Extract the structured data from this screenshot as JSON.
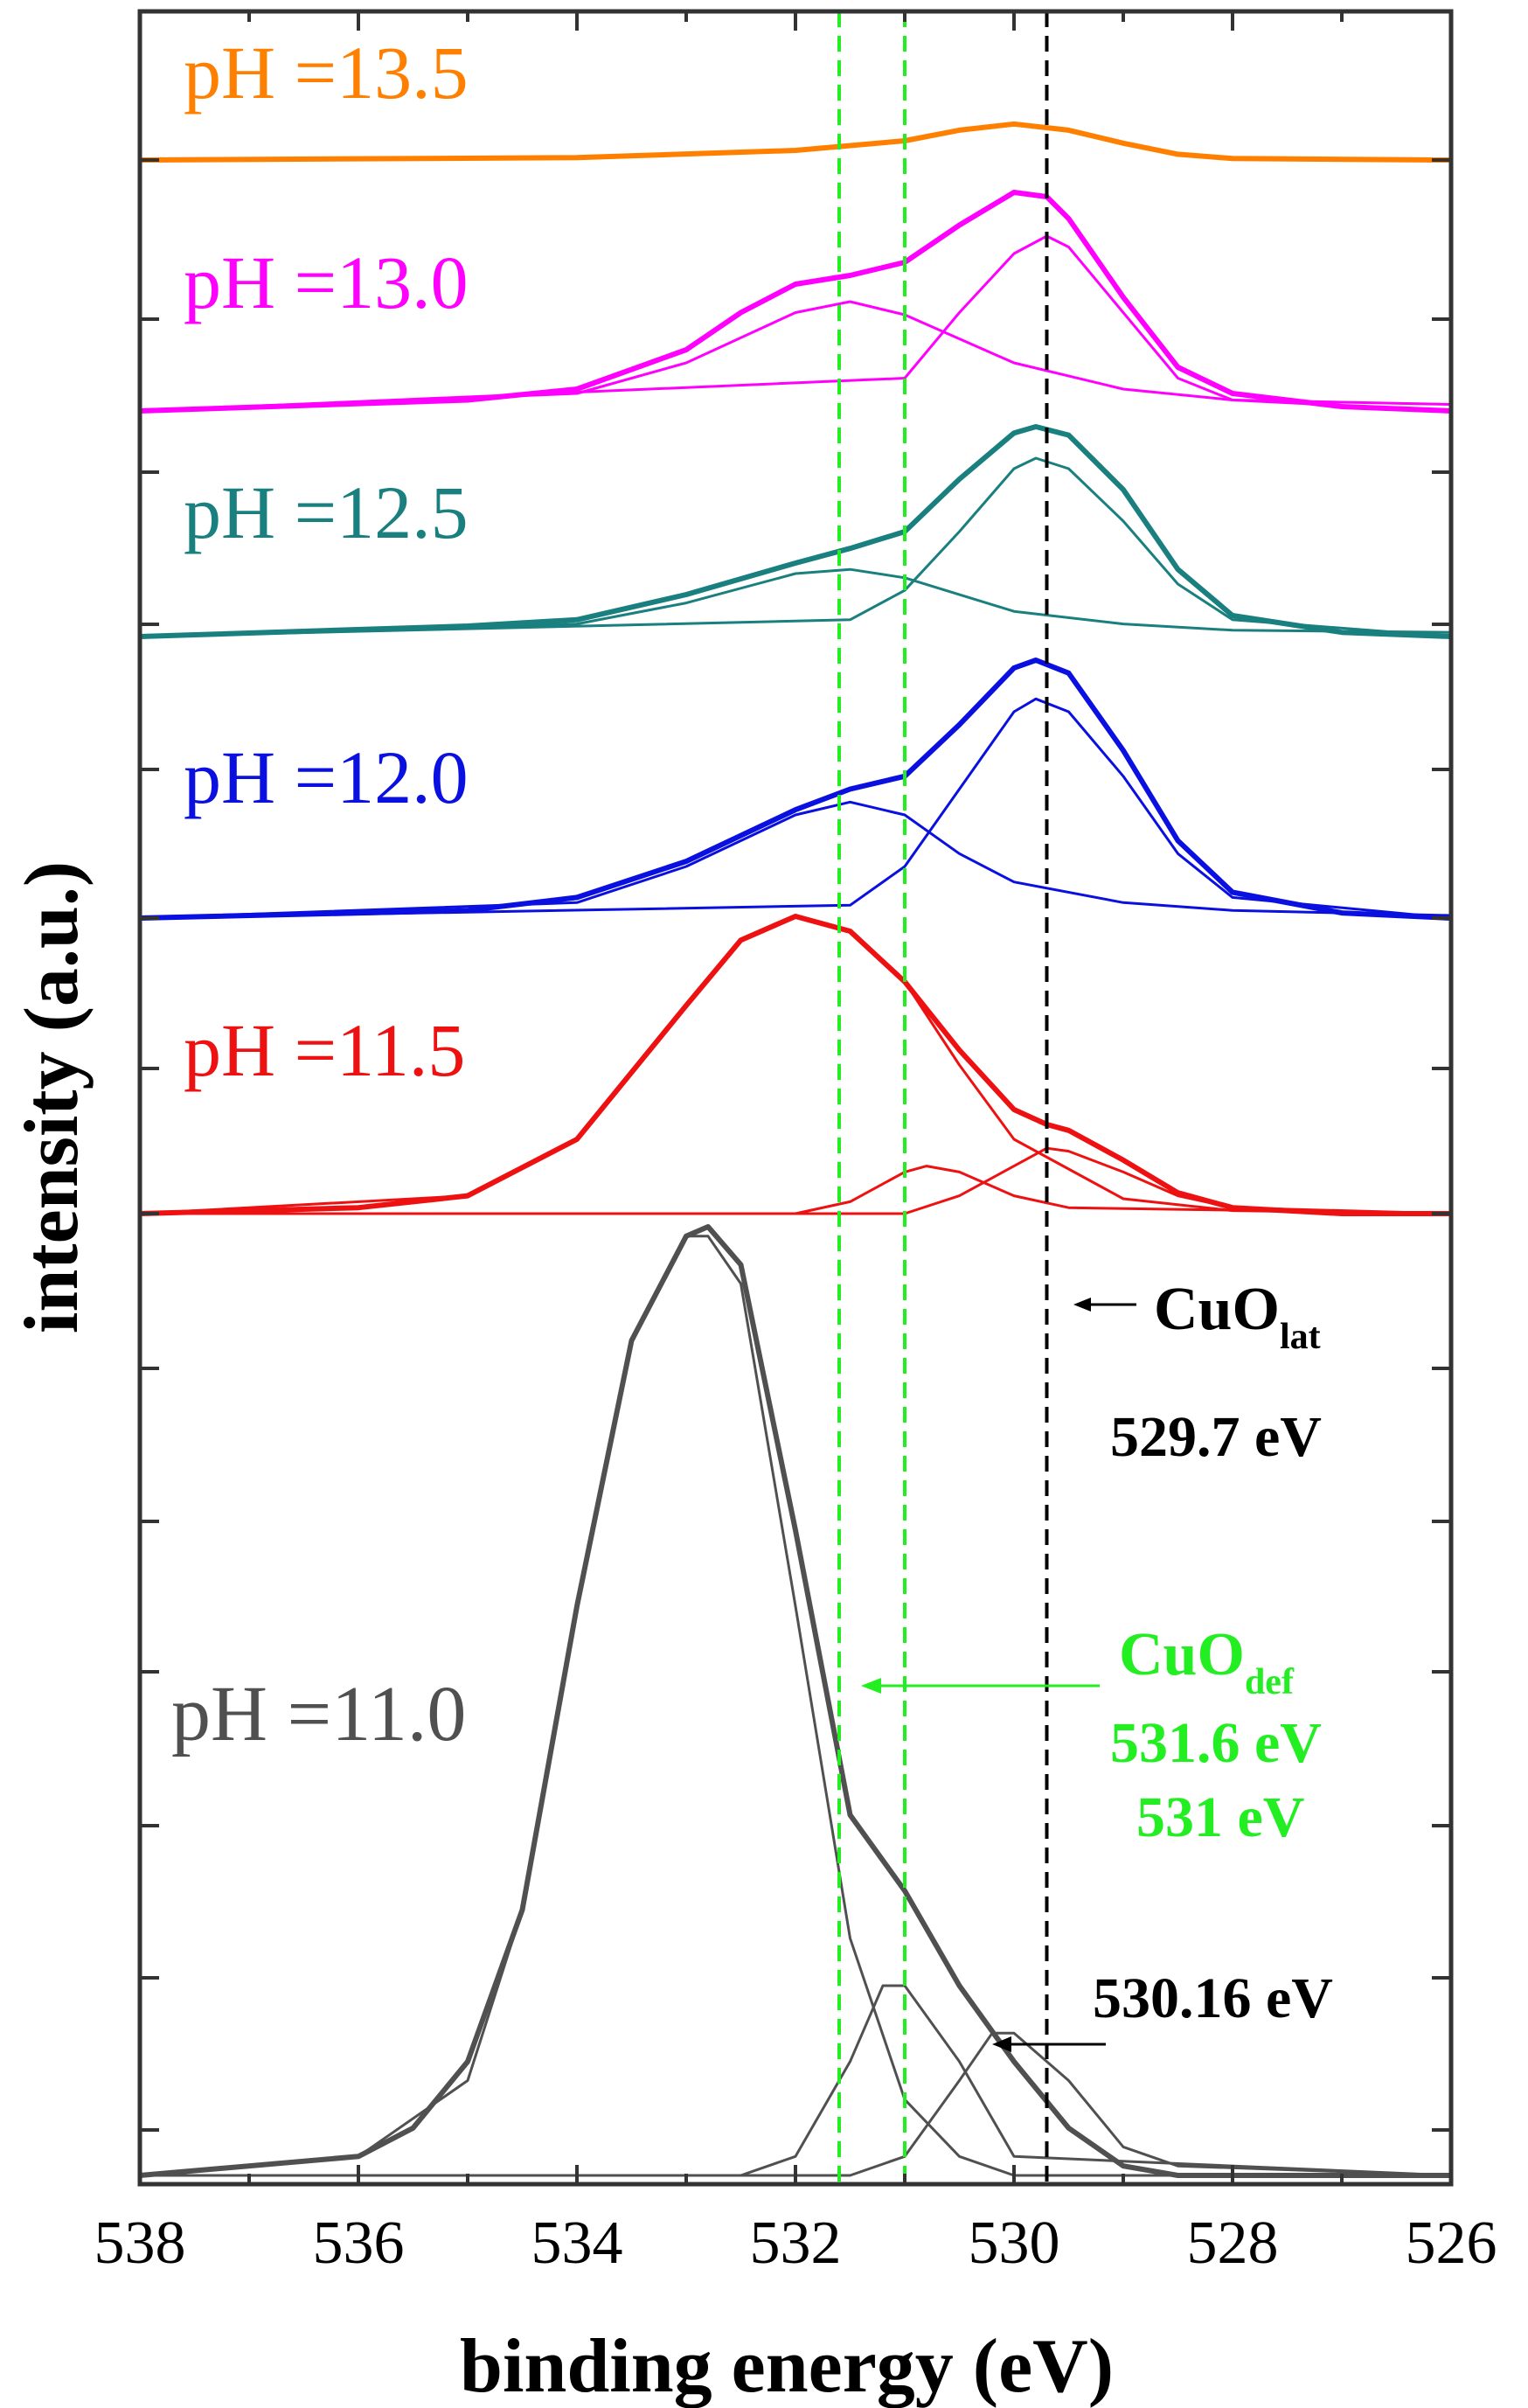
{
  "chart_data": {
    "type": "line",
    "xlabel": "binding energy (eV)",
    "ylabel": "intensity (a.u.)",
    "xlim": [
      538,
      526
    ],
    "x_reversed": true,
    "x_ticks": [
      "538",
      "536",
      "534",
      "532",
      "530",
      "528",
      "526"
    ],
    "grid": false,
    "legend": "none",
    "series": [
      {
        "name": "pH =13.5",
        "color": "#ff8000",
        "total": {
          "x": [
            538,
            534,
            532,
            531,
            530.5,
            530,
            529.5,
            529,
            528.5,
            528,
            526
          ],
          "y": [
            0,
            0.05,
            0.2,
            0.4,
            0.62,
            0.75,
            0.62,
            0.35,
            0.12,
            0.03,
            0
          ]
        }
      },
      {
        "name": "pH =13.0",
        "color": "#ff00ff",
        "total": {
          "x": [
            538,
            535,
            534,
            533,
            532.5,
            532,
            531.5,
            531,
            530.5,
            530,
            529.7,
            529.5,
            529,
            528.5,
            528,
            527,
            526
          ],
          "y": [
            0,
            0.05,
            0.1,
            0.28,
            0.45,
            0.58,
            0.62,
            0.68,
            0.85,
            1.0,
            0.98,
            0.88,
            0.52,
            0.2,
            0.08,
            0.02,
            0
          ]
        },
        "components": [
          {
            "x": [
              538,
              534,
              533,
              532,
              531.5,
              531,
              530,
              529,
              528,
              526
            ],
            "y": [
              0,
              0.08,
              0.22,
              0.45,
              0.5,
              0.44,
              0.22,
              0.1,
              0.05,
              0.03
            ]
          },
          {
            "x": [
              538,
              531,
              530.5,
              530,
              529.7,
              529.5,
              529,
              528.5,
              528,
              526
            ],
            "y": [
              0,
              0.15,
              0.45,
              0.72,
              0.8,
              0.75,
              0.45,
              0.15,
              0.05,
              0
            ]
          }
        ]
      },
      {
        "name": "pH =12.5",
        "color": "#1a7f7f",
        "total": {
          "x": [
            538,
            535,
            534,
            533,
            532,
            531.5,
            531,
            530.5,
            530,
            529.8,
            529.5,
            529,
            528.5,
            528,
            527,
            526
          ],
          "y": [
            0,
            0.05,
            0.08,
            0.2,
            0.35,
            0.42,
            0.5,
            0.75,
            0.97,
            1.0,
            0.96,
            0.7,
            0.32,
            0.1,
            0.02,
            0
          ]
        },
        "components": [
          {
            "x": [
              538,
              534,
              533,
              532,
              531.5,
              531,
              530,
              529,
              528,
              526
            ],
            "y": [
              0,
              0.06,
              0.16,
              0.3,
              0.32,
              0.28,
              0.12,
              0.06,
              0.03,
              0.02
            ]
          },
          {
            "x": [
              538,
              531.5,
              531,
              530.5,
              530,
              529.8,
              529.5,
              529,
              528.5,
              528,
              526
            ],
            "y": [
              0,
              0.08,
              0.22,
              0.5,
              0.8,
              0.85,
              0.8,
              0.55,
              0.25,
              0.08,
              0
            ]
          }
        ]
      },
      {
        "name": "pH =12.0",
        "color": "#0a10e0",
        "total": {
          "x": [
            538,
            535,
            534,
            533,
            532,
            531.5,
            531,
            530.5,
            530,
            529.8,
            529.5,
            529,
            528.5,
            528,
            527,
            526
          ],
          "y": [
            0,
            0.03,
            0.08,
            0.22,
            0.42,
            0.5,
            0.55,
            0.75,
            0.97,
            1.0,
            0.95,
            0.65,
            0.3,
            0.1,
            0.02,
            0
          ]
        },
        "components": [
          {
            "x": [
              538,
              534,
              533,
              532,
              531.5,
              531,
              530.5,
              530,
              529,
              528,
              526
            ],
            "y": [
              0,
              0.06,
              0.2,
              0.4,
              0.45,
              0.4,
              0.25,
              0.14,
              0.06,
              0.03,
              0.01
            ]
          },
          {
            "x": [
              538,
              531.5,
              531,
              530.5,
              530,
              529.8,
              529.5,
              529,
              528.5,
              528,
              526
            ],
            "y": [
              0,
              0.05,
              0.2,
              0.5,
              0.8,
              0.85,
              0.8,
              0.55,
              0.25,
              0.08,
              0
            ]
          }
        ]
      },
      {
        "name": "pH =11.5",
        "color": "#ee1111",
        "total": {
          "x": [
            538,
            536,
            535,
            534,
            533,
            532.5,
            532,
            531.5,
            531,
            530.5,
            530,
            529.7,
            529.5,
            529,
            528.5,
            528,
            527,
            526
          ],
          "y": [
            0,
            0.02,
            0.06,
            0.25,
            0.7,
            0.92,
            1.0,
            0.95,
            0.78,
            0.55,
            0.35,
            0.3,
            0.28,
            0.18,
            0.07,
            0.02,
            0,
            0
          ]
        },
        "components": [
          {
            "x": [
              538,
              535,
              534,
              533,
              532.5,
              532,
              531.5,
              531,
              530.5,
              530,
              529,
              528,
              526
            ],
            "y": [
              0,
              0.06,
              0.25,
              0.7,
              0.92,
              1.0,
              0.95,
              0.78,
              0.5,
              0.25,
              0.05,
              0.01,
              0
            ]
          },
          {
            "x": [
              538,
              532,
              531.5,
              531,
              530.8,
              530.5,
              530,
              529.5,
              526
            ],
            "y": [
              0,
              0,
              0.04,
              0.14,
              0.16,
              0.14,
              0.06,
              0.02,
              0
            ]
          },
          {
            "x": [
              538,
              531,
              530.5,
              530,
              529.7,
              529.5,
              529,
              528.5,
              528,
              526
            ],
            "y": [
              0,
              0,
              0.06,
              0.16,
              0.22,
              0.21,
              0.14,
              0.06,
              0.02,
              0
            ]
          }
        ]
      },
      {
        "name": "pH =11.0",
        "color": "#505050",
        "total": {
          "x": [
            538,
            536,
            535.5,
            535,
            534.5,
            534,
            533.5,
            533,
            532.8,
            532.5,
            532,
            531.5,
            531,
            530.5,
            530,
            529.5,
            529,
            528.5,
            526
          ],
          "y": [
            0,
            0.02,
            0.05,
            0.12,
            0.28,
            0.6,
            0.88,
            0.99,
            1.0,
            0.96,
            0.68,
            0.38,
            0.3,
            0.2,
            0.12,
            0.05,
            0.01,
            0,
            0
          ]
        },
        "components": [
          {
            "x": [
              538,
              536,
              535,
              534.5,
              534,
              533.5,
              533,
              532.8,
              532.5,
              532,
              531.5,
              531,
              530.5,
              530,
              529,
              526
            ],
            "y": [
              0,
              0.02,
              0.1,
              0.28,
              0.6,
              0.88,
              0.99,
              0.99,
              0.94,
              0.6,
              0.25,
              0.08,
              0.02,
              0,
              0,
              0
            ]
          },
          {
            "x": [
              538,
              532.5,
              532,
              531.5,
              531.2,
              531,
              530.5,
              530,
              526
            ],
            "y": [
              0,
              0,
              0.02,
              0.12,
              0.2,
              0.2,
              0.12,
              0.02,
              0
            ]
          },
          {
            "x": [
              538,
              531.5,
              531,
              530.5,
              530.2,
              530,
              529.5,
              529,
              528.5,
              526
            ],
            "y": [
              0,
              0,
              0.02,
              0.1,
              0.15,
              0.15,
              0.1,
              0.03,
              0.01,
              0
            ]
          }
        ]
      }
    ],
    "reference_lines": [
      {
        "x": 531.6,
        "color": "#22ee22",
        "style": "dashed"
      },
      {
        "x": 531,
        "color": "#22ee22",
        "style": "dashed"
      },
      {
        "x": 529.7,
        "color": "#000000",
        "style": "dashed"
      }
    ],
    "annotations": {
      "cuo_lat": {
        "main": "CuO",
        "sub": "lat",
        "value": "529.7 eV",
        "color": "#000000"
      },
      "cuo_def": {
        "main": "CuO",
        "sub": "def",
        "value1": "531.6 eV",
        "value2": "531 eV",
        "color": "#22ee22"
      },
      "peak_530": {
        "value": "530.16 eV",
        "color": "#000000"
      }
    }
  }
}
